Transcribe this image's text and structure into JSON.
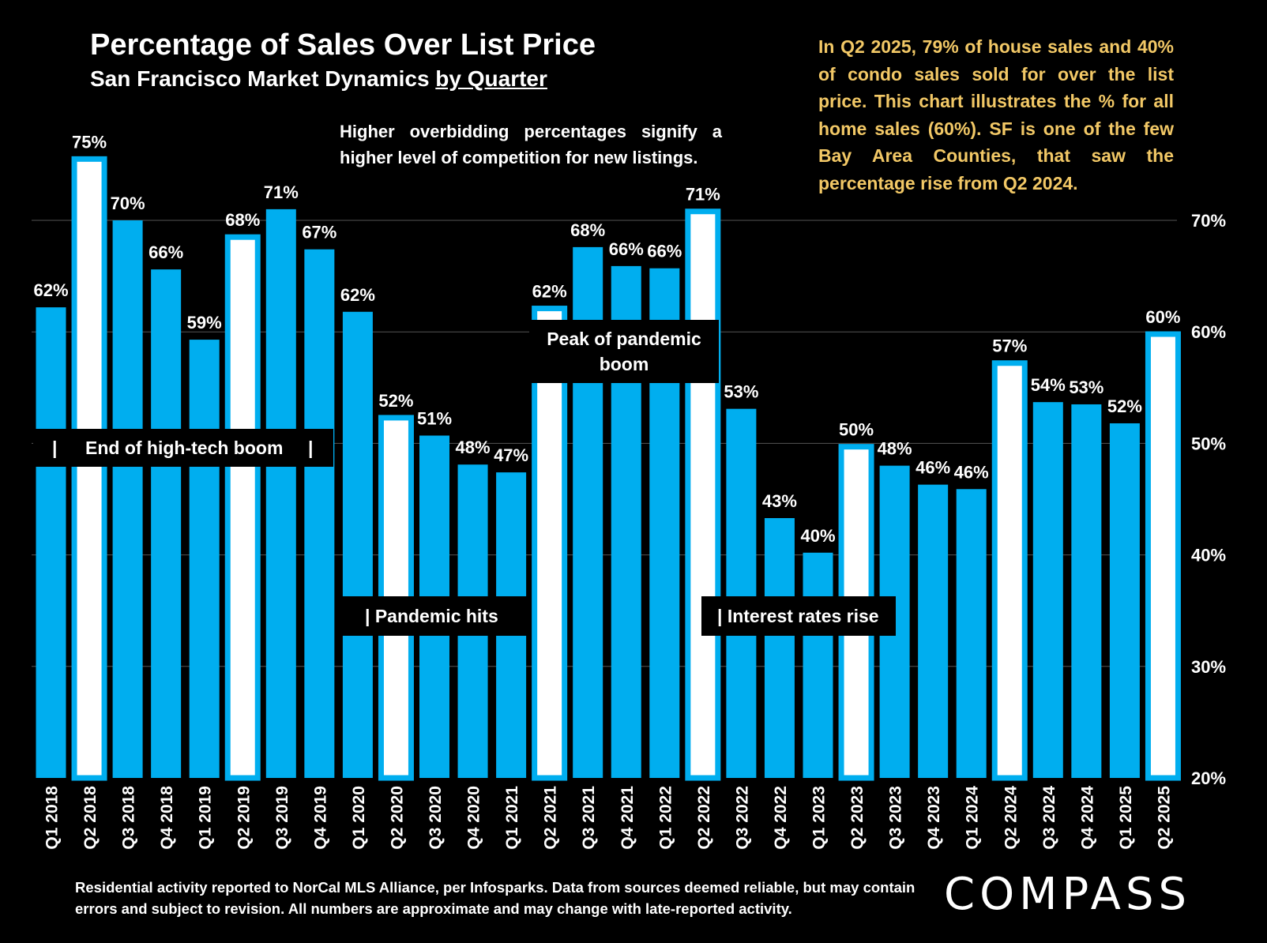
{
  "title": "Percentage of Sales Over List Price",
  "subtitle_main": "San Francisco Market Dynamics ",
  "subtitle_underlined": "by Quarter",
  "note": "Higher overbidding percentages signify a higher level of competition for new listings.",
  "callout": "In Q2 2025, 79% of house sales and 40% of condo sales sold for over the list price. This chart illustrates the % for all home sales (60%). SF is one of the few Bay Area Counties, that saw the percentage rise from Q2 2024.",
  "annotations": {
    "tech_bar_left": "|",
    "tech": "End of high-tech boom",
    "tech_bar_right": "|",
    "pandemic": "| Pandemic hits",
    "peak": "Peak of pandemic boom",
    "rates": "| Interest rates rise"
  },
  "footer": "Residential activity reported to NorCal MLS Alliance, per Infosparks. Data from sources deemed reliable, but may contain errors and subject to revision. All numbers are approximate and may change with late-reported activity.",
  "logo": "COMPASS",
  "colors": {
    "bar": "#00aeef",
    "highlight_fill": "#ffffff",
    "background": "#000000",
    "callout": "#f2c866",
    "grid": "#555555"
  },
  "chart_data": {
    "type": "bar",
    "title": "Percentage of Sales Over List Price",
    "xlabel": "",
    "ylabel": "",
    "ylim": [
      20,
      70
    ],
    "yticks": [
      20,
      30,
      40,
      50,
      60,
      70
    ],
    "ytick_labels": [
      "20%",
      "30%",
      "40%",
      "50%",
      "60%",
      "70%"
    ],
    "grid": true,
    "categories": [
      "Q1 2018",
      "Q2 2018",
      "Q3 2018",
      "Q4 2018",
      "Q1 2019",
      "Q2 2019",
      "Q3 2019",
      "Q4 2019",
      "Q1 2020",
      "Q2 2020",
      "Q3 2020",
      "Q4 2020",
      "Q1 2021",
      "Q2 2021",
      "Q3 2021",
      "Q4 2021",
      "Q1 2022",
      "Q2 2022",
      "Q3 2022",
      "Q4 2022",
      "Q1 2023",
      "Q2 2023",
      "Q3 2023",
      "Q4 2023",
      "Q1 2024",
      "Q2 2024",
      "Q3 2024",
      "Q4 2024",
      "Q1 2025",
      "Q2 2025"
    ],
    "values": [
      62.2,
      75.5,
      70.0,
      65.6,
      59.3,
      68.5,
      71.0,
      67.4,
      61.8,
      52.3,
      50.7,
      48.1,
      47.4,
      62.1,
      67.6,
      65.9,
      65.7,
      70.8,
      53.1,
      43.3,
      40.2,
      49.7,
      48.0,
      46.3,
      45.9,
      57.2,
      53.7,
      53.5,
      51.8,
      59.8
    ],
    "value_labels": [
      "62%",
      "75%",
      "70%",
      "66%",
      "59%",
      "68%",
      "71%",
      "67%",
      "62%",
      "52%",
      "51%",
      "48%",
      "47%",
      "62%",
      "68%",
      "66%",
      "66%",
      "71%",
      "53%",
      "43%",
      "40%",
      "50%",
      "48%",
      "46%",
      "46%",
      "57%",
      "54%",
      "53%",
      "52%",
      "60%"
    ],
    "highlighted": [
      "Q2 2018",
      "Q2 2019",
      "Q2 2020",
      "Q2 2021",
      "Q2 2022",
      "Q2 2023",
      "Q2 2024",
      "Q2 2025"
    ]
  }
}
